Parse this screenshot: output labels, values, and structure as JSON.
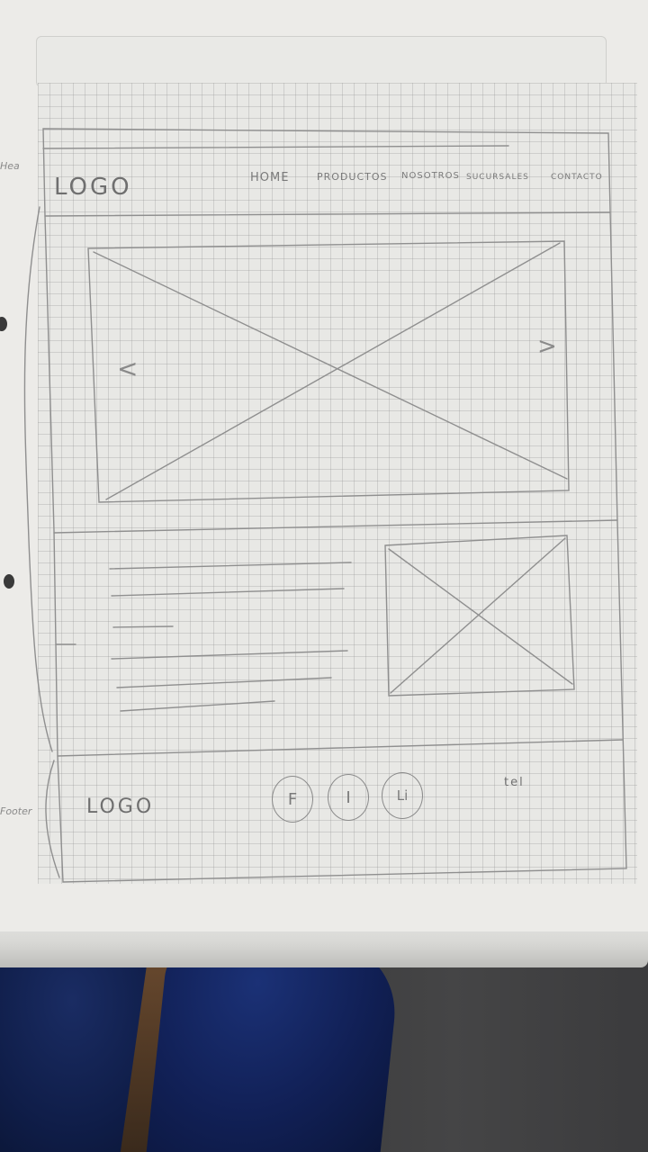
{
  "header": {
    "side_note": "Hea",
    "logo": "LOGO",
    "nav": [
      "HOME",
      "PRODUCTOS",
      "NOSOTROS",
      "SUCURSALES",
      "CONTACTO"
    ]
  },
  "carousel": {
    "prev_arrow": "<",
    "next_arrow": ">"
  },
  "footer": {
    "side_note": "Footer",
    "logo": "LOGO",
    "social": [
      "F",
      "I",
      "Li"
    ],
    "phone": "tel"
  }
}
